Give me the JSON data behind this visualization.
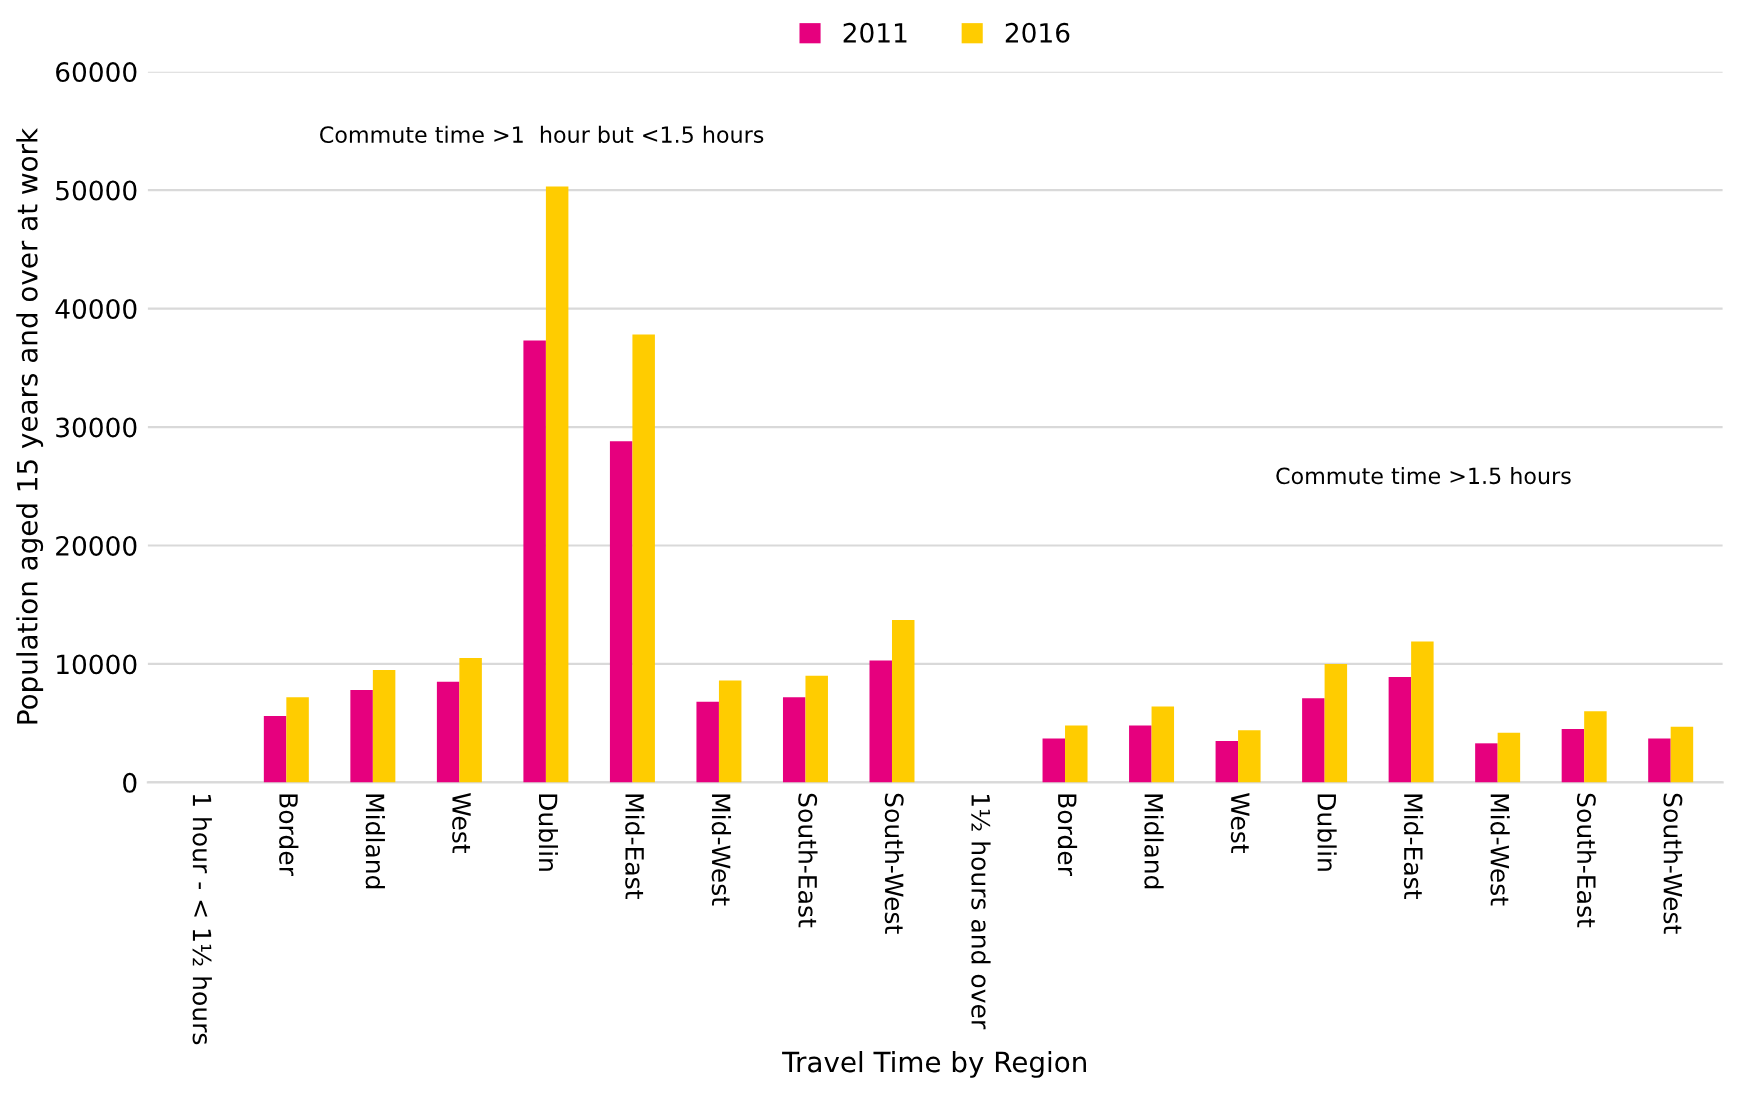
{
  "chart_data": {
    "type": "bar",
    "xlabel": "Travel Time by Region",
    "ylabel": "Population aged 15 years and over at work",
    "categories": [
      "1 hour - < 1½ hours",
      "Border",
      "Midland",
      "West",
      "Dublin",
      "Mid-East",
      "Mid-West",
      "South-East",
      "South-West",
      "1½ hours and over",
      "Border",
      "Midland",
      "West",
      "Dublin",
      "Mid-East",
      "Mid-West",
      "South-East",
      "South-West"
    ],
    "series": [
      {
        "name": "2011",
        "color": "#e6007e",
        "values": [
          null,
          5600,
          7800,
          8500,
          37300,
          28800,
          6800,
          7200,
          10300,
          null,
          3700,
          4800,
          3500,
          7100,
          8900,
          3300,
          4500,
          3700
        ]
      },
      {
        "name": "2016",
        "color": "#ffcc00",
        "values": [
          null,
          7200,
          9500,
          10500,
          50300,
          37800,
          8600,
          9000,
          13700,
          null,
          4800,
          6400,
          4400,
          10000,
          11900,
          4200,
          6000,
          4700
        ]
      }
    ],
    "ylim": [
      0,
      60000
    ],
    "yticks": [
      0,
      10000,
      20000,
      30000,
      40000,
      50000,
      60000
    ],
    "grid": "y",
    "legend": "top",
    "annotations": [
      "Commute time >1  hour but <1.5 hours",
      "Commute time >1.5 hours"
    ]
  }
}
